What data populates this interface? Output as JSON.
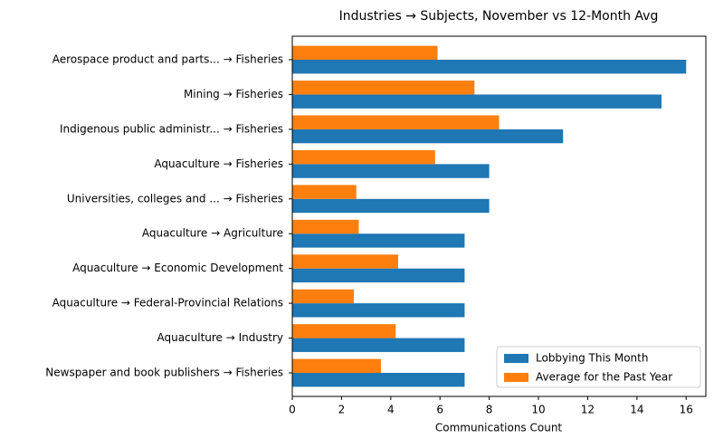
{
  "chart_data": {
    "type": "barh",
    "title": "Industries → Subjects, November vs 12-Month Avg",
    "xlabel": "Communications Count",
    "categories": [
      "Aerospace product and parts... → Fisheries",
      "Mining → Fisheries",
      "Indigenous public administr... → Fisheries",
      "Aquaculture → Fisheries",
      "Universities, colleges and ... → Fisheries",
      "Aquaculture → Agriculture",
      "Aquaculture → Economic Development",
      "Aquaculture → Federal-Provincial Relations",
      "Aquaculture → Industry",
      "Newspaper and book publishers → Fisheries"
    ],
    "series": [
      {
        "name": "Lobbying This Month",
        "color": "#1f77b4",
        "values": [
          16,
          15,
          11,
          8,
          8,
          7,
          7,
          7,
          7,
          7
        ]
      },
      {
        "name": "Average for the Past Year",
        "color": "#ff7f0e",
        "values": [
          5.9,
          7.4,
          8.4,
          5.8,
          2.6,
          2.7,
          4.3,
          2.5,
          4.2,
          3.6
        ]
      }
    ],
    "xlim": [
      0,
      16.8
    ],
    "xticks": [
      0,
      2,
      4,
      6,
      8,
      10,
      12,
      14,
      16
    ],
    "legend": "lower right",
    "grid": false
  }
}
